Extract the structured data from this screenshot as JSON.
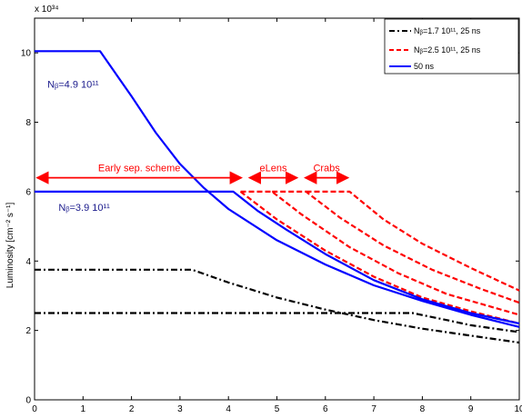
{
  "chart_data": {
    "type": "line",
    "title": "",
    "xlabel": "",
    "ylabel": "Luminosity [cm⁻² s⁻¹]",
    "y_multiplier": "x 10³⁴",
    "xlim": [
      0,
      10
    ],
    "ylim": [
      0,
      11
    ],
    "x_ticks": [
      "0",
      "1",
      "2",
      "3",
      "4",
      "5",
      "6",
      "7",
      "8",
      "9",
      "10"
    ],
    "y_ticks": [
      "0",
      "2",
      "4",
      "6",
      "8",
      "10"
    ],
    "grid": false,
    "legend_position": "top-right",
    "legend": [
      {
        "label": "Nᵦ=1.7 10¹¹, 25 ns",
        "color": "#000000",
        "dash": "dashdot"
      },
      {
        "label": "Nᵦ=2.5 10¹¹, 25 ns",
        "color": "#ff0000",
        "dash": "dashed"
      },
      {
        "label": "50 ns",
        "color": "#0000ff",
        "dash": "solid"
      }
    ],
    "series": [
      {
        "color": "#000000",
        "dash": "dashdot",
        "points": [
          [
            0,
            3.75
          ],
          [
            3.25,
            3.75
          ],
          [
            4,
            3.38
          ],
          [
            5,
            2.95
          ],
          [
            6,
            2.6
          ],
          [
            7,
            2.3
          ],
          [
            8,
            2.05
          ],
          [
            9,
            1.85
          ],
          [
            10,
            1.65
          ]
        ]
      },
      {
        "color": "#000000",
        "dash": "dashdot",
        "points": [
          [
            0,
            2.5
          ],
          [
            7.8,
            2.5
          ],
          [
            8.5,
            2.3
          ],
          [
            9,
            2.15
          ],
          [
            10,
            1.95
          ]
        ]
      },
      {
        "color": "#ff0000",
        "dash": "dashed",
        "points": [
          [
            4.25,
            6.0
          ],
          [
            5,
            5.2
          ],
          [
            6,
            4.3
          ],
          [
            7,
            3.55
          ],
          [
            8,
            2.95
          ],
          [
            9,
            2.55
          ],
          [
            10,
            2.2
          ]
        ]
      },
      {
        "color": "#ff0000",
        "dash": "dashed",
        "points": [
          [
            4.25,
            6.0
          ],
          [
            4.9,
            6.0
          ],
          [
            5.5,
            5.35
          ],
          [
            6.5,
            4.4
          ],
          [
            7.5,
            3.65
          ],
          [
            8.5,
            3.05
          ],
          [
            10,
            2.45
          ]
        ]
      },
      {
        "color": "#ff0000",
        "dash": "dashed",
        "points": [
          [
            4.9,
            6.0
          ],
          [
            5.6,
            6.0
          ],
          [
            6.3,
            5.25
          ],
          [
            7.2,
            4.45
          ],
          [
            8.2,
            3.75
          ],
          [
            9.2,
            3.2
          ],
          [
            10,
            2.8
          ]
        ]
      },
      {
        "color": "#ff0000",
        "dash": "dashed",
        "points": [
          [
            5.6,
            6.0
          ],
          [
            6.5,
            6.0
          ],
          [
            7.2,
            5.2
          ],
          [
            8,
            4.5
          ],
          [
            9,
            3.8
          ],
          [
            10,
            3.15
          ]
        ]
      },
      {
        "color": "#0000ff",
        "dash": "solid",
        "points": [
          [
            0,
            10.05
          ],
          [
            1.35,
            10.05
          ],
          [
            2,
            8.75
          ],
          [
            2.5,
            7.7
          ],
          [
            3,
            6.8
          ],
          [
            3.5,
            6.1
          ],
          [
            4,
            5.5
          ],
          [
            5,
            4.6
          ],
          [
            6,
            3.9
          ],
          [
            7,
            3.3
          ],
          [
            8,
            2.85
          ],
          [
            9,
            2.45
          ],
          [
            10,
            2.1
          ]
        ]
      },
      {
        "color": "#0000ff",
        "dash": "solid",
        "points": [
          [
            0,
            6.0
          ],
          [
            4.1,
            6.0
          ],
          [
            4.6,
            5.45
          ],
          [
            5.2,
            4.9
          ],
          [
            6,
            4.2
          ],
          [
            7,
            3.45
          ],
          [
            8,
            2.9
          ],
          [
            9,
            2.5
          ],
          [
            10,
            2.2
          ]
        ]
      }
    ],
    "annotations": [
      {
        "text": "Nᵦ=4.9 10¹¹",
        "color": "#1a1a8c",
        "x": 0.02,
        "y": 9.1
      },
      {
        "text": "Nᵦ=3.9 10¹¹",
        "color": "#1a1a8c",
        "x": 0.25,
        "y": 5.55
      }
    ],
    "range_arrows": [
      {
        "label": "Early sep. scheme",
        "x0": 0.02,
        "x1": 4.3,
        "y": 6.4,
        "color": "#ff0000"
      },
      {
        "label": "eLens",
        "x0": 4.4,
        "x1": 5.45,
        "y": 6.4,
        "color": "#ff0000"
      },
      {
        "label": "Crabs",
        "x0": 5.55,
        "x1": 6.5,
        "y": 6.4,
        "color": "#ff0000"
      }
    ]
  }
}
